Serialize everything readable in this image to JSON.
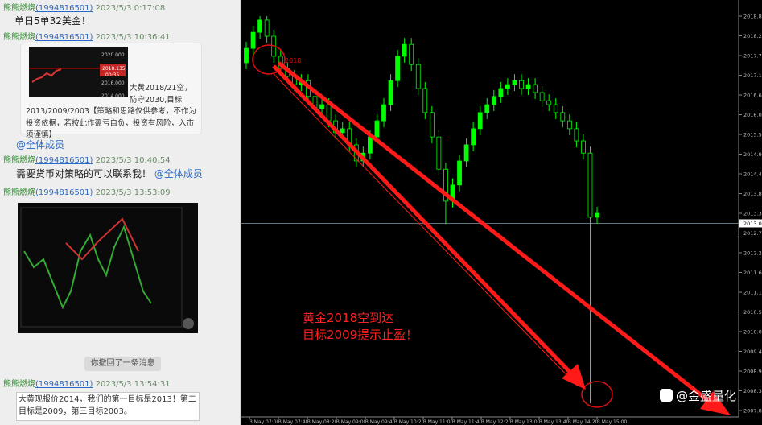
{
  "chat": {
    "messages": [
      {
        "name": "熊熊燃烧",
        "qq": "(1994816501)",
        "time": "2023/5/3 0:17:08",
        "text": "单日5单32美金！"
      },
      {
        "name": "熊熊燃烧",
        "qq": "(1994816501)",
        "time": "2023/5/3 10:36:41",
        "image_labels": [
          "2020.000",
          "2018.135",
          "00:35",
          "2016.000",
          "2014.000"
        ],
        "text": "大黄2018/21空，防守2030,目标2013/2009/2003【策略和思路仅供参考，不作为投资依据，若按此作盈亏自负，投资有风险，入市须谨慎】",
        "mention": "@全体成员"
      },
      {
        "name": "熊熊燃烧",
        "qq": "(1994816501)",
        "time": "2023/5/3 10:40:54",
        "text": "需要货币对策略的可以联系我！",
        "mention": "@全体成员"
      },
      {
        "name": "熊熊燃烧",
        "qq": "(1994816501)",
        "time": "2023/5/3 13:53:09"
      },
      {
        "name": "熊熊燃烧",
        "qq": "(1994816501)",
        "time": "2023/5/3 13:54:31"
      }
    ],
    "notice": "你撤回了一条消息",
    "input": "大黄现报价2014，我们的第一目标是2013！第二目标是2009，第三目标2003。"
  },
  "chart_data": {
    "type": "candlestick",
    "candles": [
      [
        2017.5,
        2018.08,
        2017.32,
        2017.9
      ],
      [
        2017.9,
        2018.53,
        2017.72,
        2018.35
      ],
      [
        2018.35,
        2018.8,
        2018.17,
        2018.69
      ],
      [
        2018.69,
        2018.8,
        2018.06,
        2018.24
      ],
      [
        2018.24,
        2018.42,
        2017.5,
        2017.68
      ],
      [
        2017.68,
        2017.86,
        2017.16,
        2017.34
      ],
      [
        2017.34,
        2017.52,
        2016.94,
        2017.12
      ],
      [
        2017.12,
        2017.3,
        2016.71,
        2016.89
      ],
      [
        2016.89,
        2017.18,
        2016.71,
        2017.0
      ],
      [
        2017.0,
        2017.18,
        2016.38,
        2016.56
      ],
      [
        2016.56,
        2016.74,
        2016.04,
        2016.22
      ],
      [
        2016.22,
        2016.51,
        2016.04,
        2016.33
      ],
      [
        2016.33,
        2016.51,
        2015.7,
        2015.88
      ],
      [
        2015.88,
        2016.06,
        2015.37,
        2015.55
      ],
      [
        2015.55,
        2015.84,
        2015.37,
        2015.66
      ],
      [
        2015.66,
        2015.84,
        2015.03,
        2015.21
      ],
      [
        2015.21,
        2015.39,
        2014.58,
        2014.76
      ],
      [
        2014.76,
        2015.16,
        2014.58,
        2014.98
      ],
      [
        2014.98,
        2015.61,
        2014.8,
        2015.43
      ],
      [
        2015.43,
        2016.06,
        2015.25,
        2015.88
      ],
      [
        2015.88,
        2016.51,
        2015.7,
        2016.33
      ],
      [
        2016.33,
        2017.18,
        2016.15,
        2017.0
      ],
      [
        2017.0,
        2017.86,
        2016.82,
        2017.68
      ],
      [
        2017.68,
        2018.19,
        2017.5,
        2018.01
      ],
      [
        2018.01,
        2018.19,
        2017.27,
        2017.45
      ],
      [
        2017.45,
        2017.63,
        2016.6,
        2016.78
      ],
      [
        2016.78,
        2016.96,
        2015.93,
        2016.11
      ],
      [
        2016.11,
        2016.29,
        2015.25,
        2015.43
      ],
      [
        2015.43,
        2015.61,
        2014.35,
        2014.53
      ],
      [
        2014.53,
        2014.71,
        2013.0,
        2013.64
      ],
      [
        2013.64,
        2014.27,
        2013.46,
        2014.09
      ],
      [
        2014.09,
        2014.94,
        2013.91,
        2014.76
      ],
      [
        2014.76,
        2015.39,
        2014.58,
        2015.21
      ],
      [
        2015.21,
        2015.84,
        2015.03,
        2015.66
      ],
      [
        2015.66,
        2016.29,
        2015.48,
        2016.11
      ],
      [
        2016.11,
        2016.51,
        2015.93,
        2016.33
      ],
      [
        2016.33,
        2016.74,
        2016.15,
        2016.56
      ],
      [
        2016.56,
        2016.96,
        2016.38,
        2016.78
      ],
      [
        2016.78,
        2017.07,
        2016.6,
        2016.89
      ],
      [
        2016.89,
        2017.18,
        2016.71,
        2017.0
      ],
      [
        2017.0,
        2017.18,
        2016.6,
        2016.78
      ],
      [
        2016.78,
        2017.07,
        2016.6,
        2016.89
      ],
      [
        2016.89,
        2017.07,
        2016.49,
        2016.67
      ],
      [
        2016.67,
        2016.85,
        2016.26,
        2016.44
      ],
      [
        2016.44,
        2016.62,
        2016.15,
        2016.33
      ],
      [
        2016.33,
        2016.51,
        2015.93,
        2016.11
      ],
      [
        2016.11,
        2016.29,
        2015.7,
        2015.88
      ],
      [
        2015.88,
        2016.06,
        2015.48,
        2015.66
      ],
      [
        2015.66,
        2015.84,
        2015.14,
        2015.32
      ],
      [
        2015.32,
        2015.5,
        2014.8,
        2014.98
      ],
      [
        2014.98,
        2015.16,
        2008.0,
        2013.19
      ],
      [
        2013.19,
        2013.48,
        2013.01,
        2013.3
      ]
    ],
    "colors": {
      "up": "#00ff00",
      "down": "#000000",
      "wick": "#00ff00"
    },
    "ylim": [
      2007.62,
      2019.25
    ],
    "yticks": [
      {
        "value": 2018.8,
        "label": "2018.80"
      },
      2018.25,
      {
        "value": 2017.7,
        "label": "2017.70"
      },
      2017.15,
      {
        "value": 2016.6,
        "label": "2016.60"
      },
      2016.05,
      {
        "value": 2015.5,
        "label": "2015.50"
      },
      2014.95,
      {
        "value": 2014.4,
        "label": "2014.40"
      },
      2013.85,
      {
        "value": 2013.3,
        "label": "2013.30"
      },
      2012.75,
      {
        "value": 2012.2,
        "label": "2012.20"
      },
      2011.65,
      {
        "value": 2011.1,
        "label": "2011.10"
      },
      2010.55,
      {
        "value": 2010,
        "label": "2010.00"
      },
      2009.45,
      {
        "value": 2008.9,
        "label": "2008.90"
      },
      2008.35,
      {
        "value": 2007.8,
        "label": "2007.80"
      }
    ],
    "current_price": 2013.02,
    "time_labels": [
      "3 May 07:00",
      "3 May 07:40",
      "3 May 08:20",
      "3 May 09:00",
      "3 May 09:40",
      "3 May 10:20",
      "3 May 11:00",
      "3 May 11:40",
      "3 May 12:20",
      "3 May 13:00",
      "3 May 13:40",
      "3 May 14:20",
      "3 May 15:00"
    ],
    "annotations": [
      "2018",
      "黄金2018空到达",
      "目标2009提示止盈！"
    ],
    "watermark": "@金盛量化"
  }
}
